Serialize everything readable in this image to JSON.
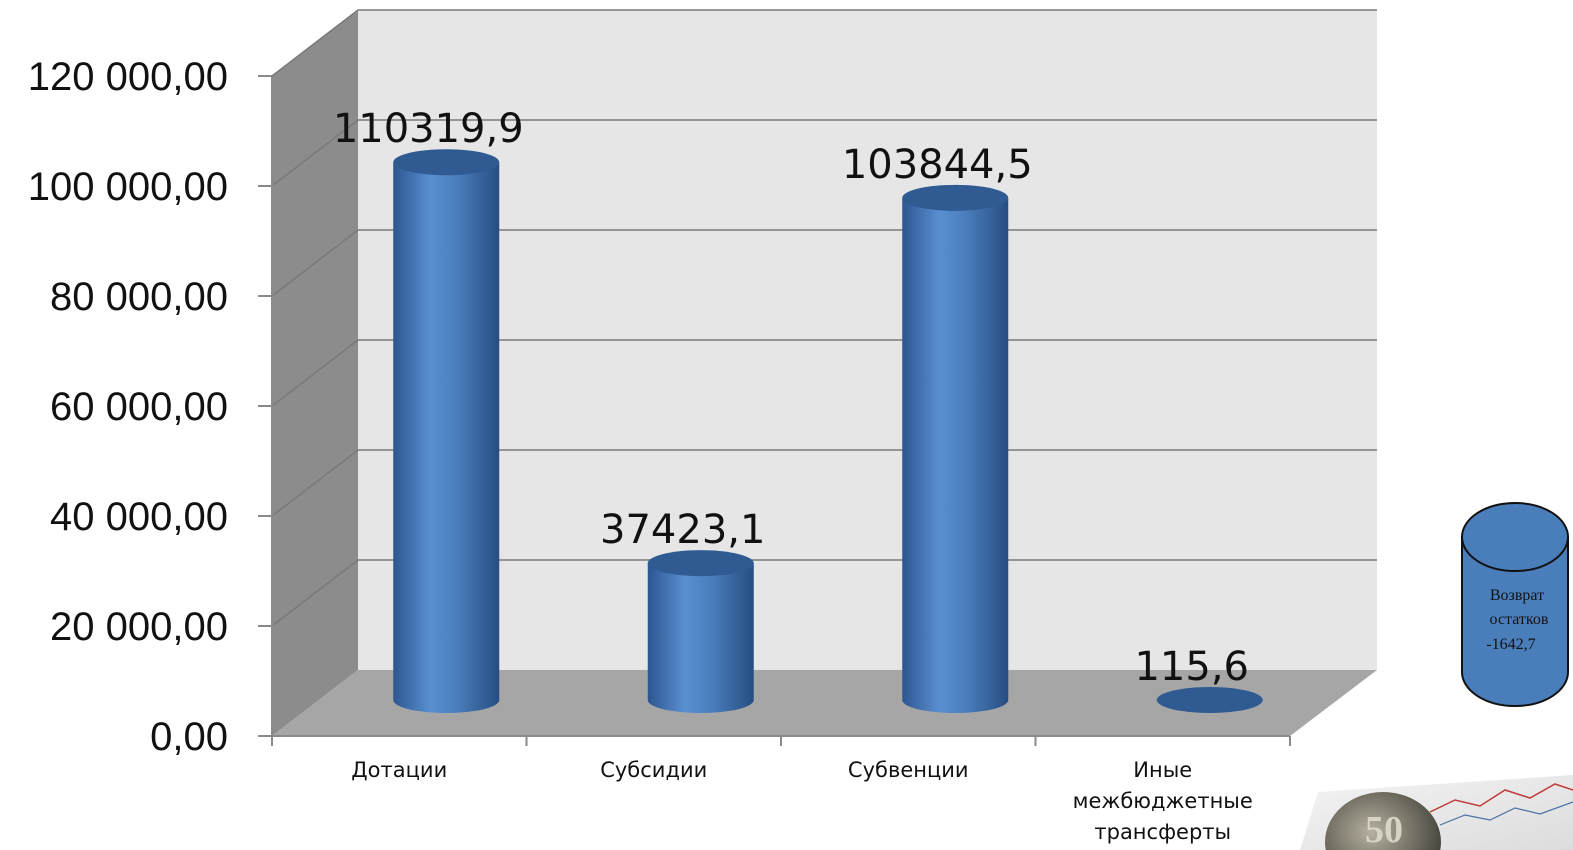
{
  "chart_data": {
    "type": "bar",
    "categories": [
      "Дотации",
      "Субсидии",
      "Субвенции",
      "Иные межбюджетные трансферты"
    ],
    "values": [
      110319.9,
      37423.1,
      103844.5,
      115.6
    ],
    "data_labels": [
      "110319,9",
      "37423,1",
      "103844,5",
      "115,6"
    ],
    "y_ticks": [
      "0,00",
      "20 000,00",
      "40 000,00",
      "60 000,00",
      "80 000,00",
      "100 000,00",
      "120 000,00"
    ],
    "ylim": [
      0,
      120000
    ],
    "grid": true,
    "bar_style": "3d-cylinder",
    "colors": {
      "bar": "#4a7ebb",
      "bar_dark": "#2f5a92",
      "wall": "#e6e6e6",
      "floor": "#a6a6a6",
      "side_wall": "#8c8c8c"
    }
  },
  "callout": {
    "line1": "Возврат",
    "line2": "остатков",
    "value": "-1642,7"
  },
  "photo": {
    "coin_text": "50"
  }
}
